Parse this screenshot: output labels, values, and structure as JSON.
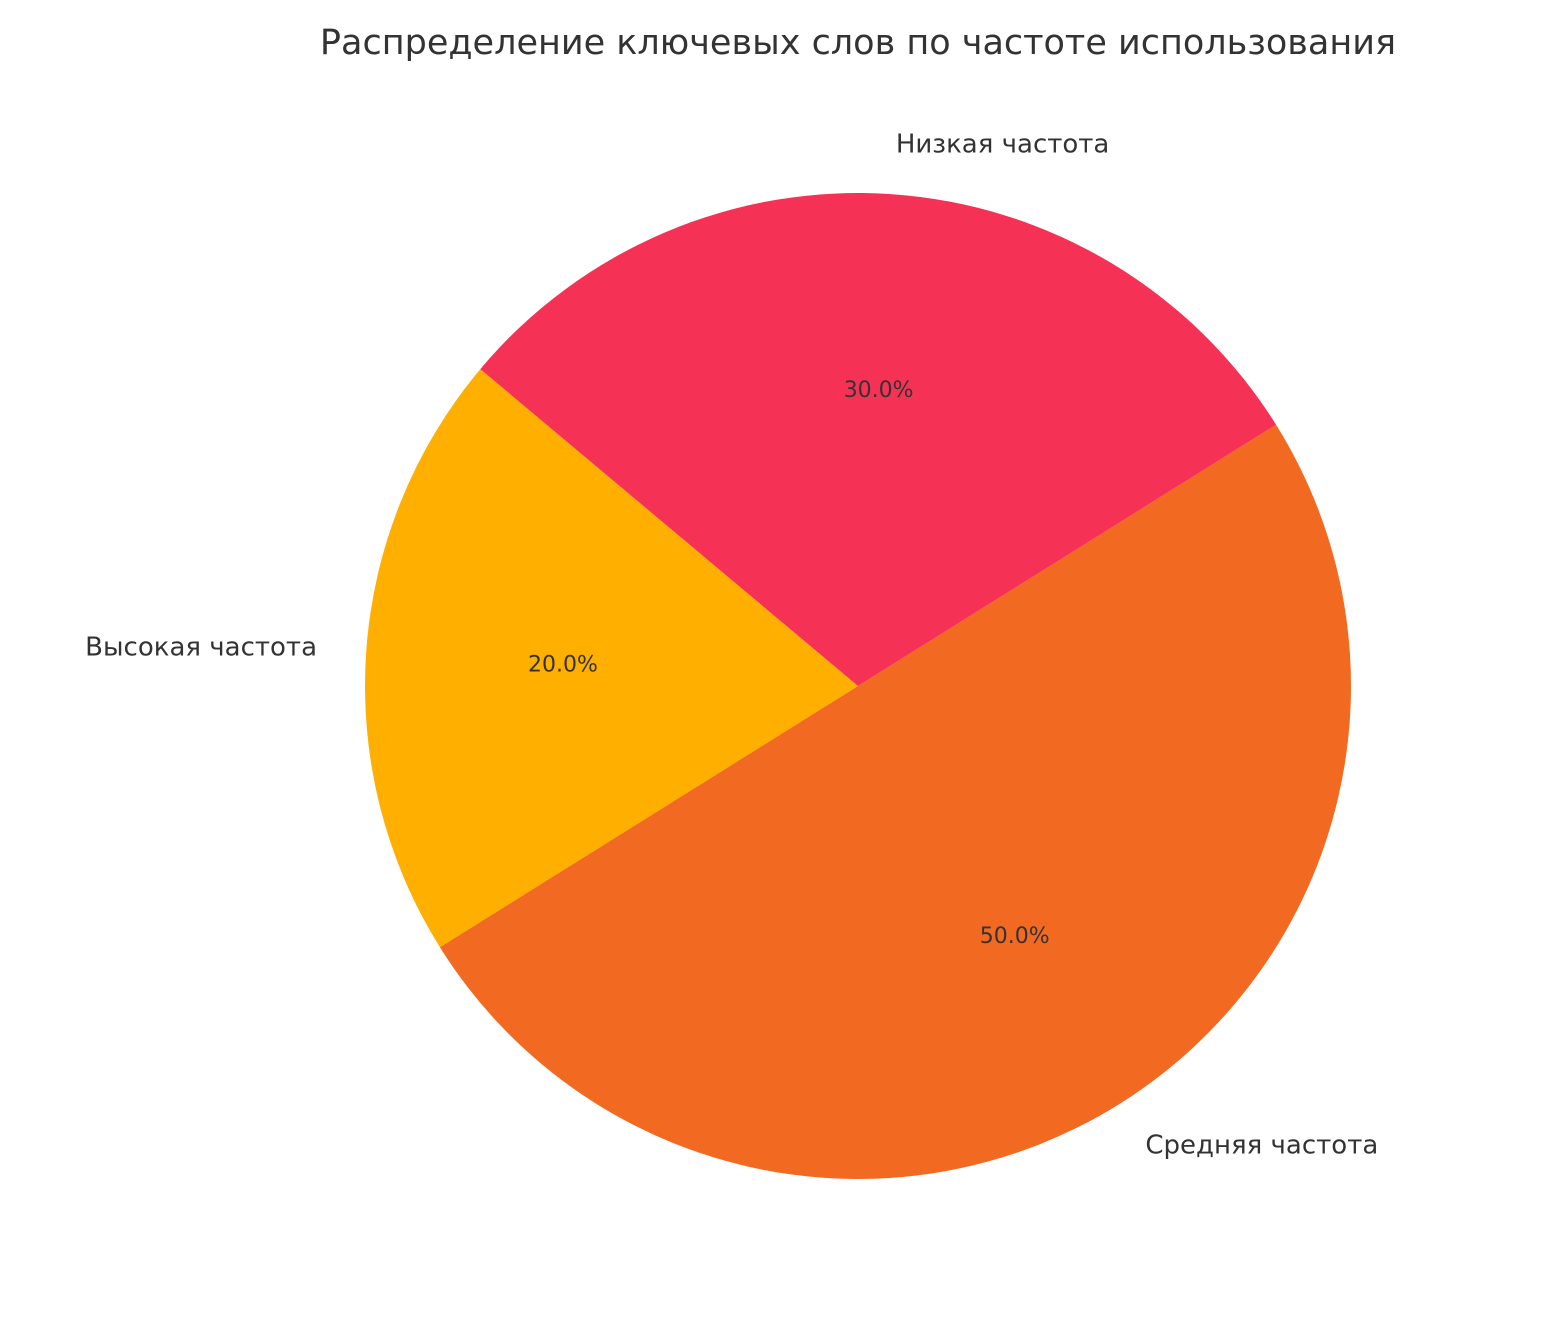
{
  "chart_data": {
    "type": "pie",
    "title": "Распределение ключевых слов по частоте использования",
    "categories": [
      "Высокая частота",
      "Средняя частота",
      "Низкая частота"
    ],
    "values": [
      20,
      50,
      30
    ],
    "percent_labels": [
      "20.0%",
      "50.0%",
      "30.0%"
    ],
    "colors": [
      "#FFAF00",
      "#F26A21",
      "#F53255"
    ],
    "start_angle_deg": 140,
    "direction": "counterclockwise",
    "legend": "none"
  }
}
